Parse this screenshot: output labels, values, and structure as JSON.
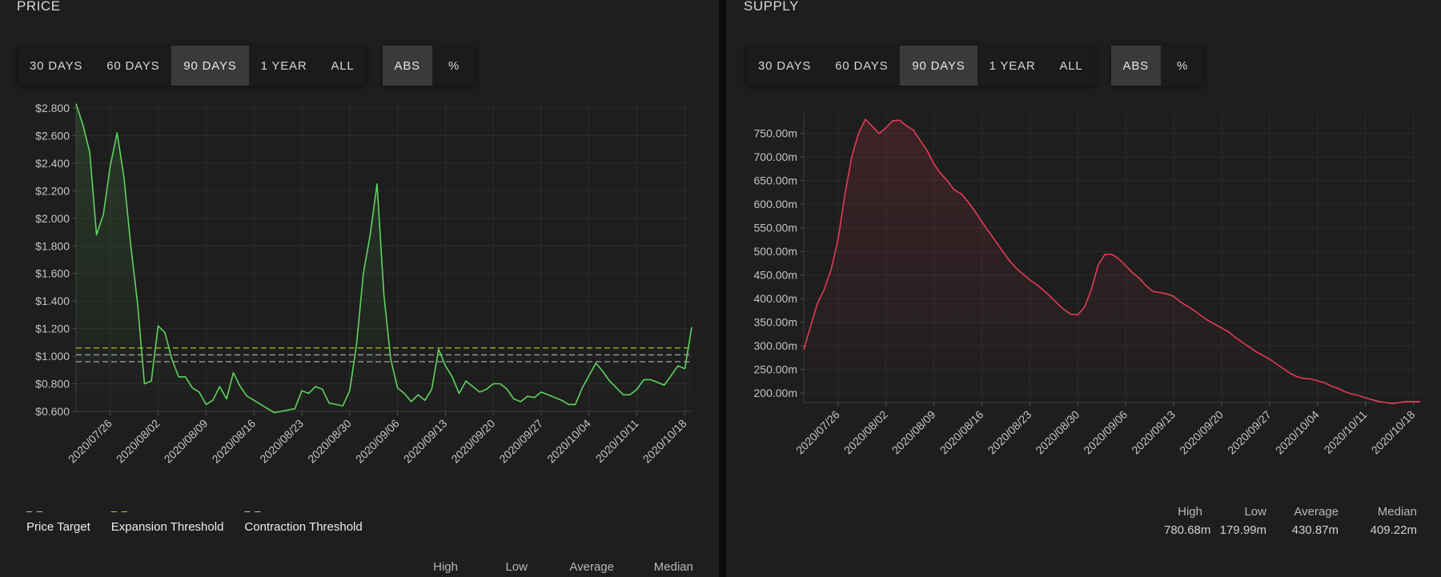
{
  "price": {
    "title": "PRICE",
    "ranges": [
      "30 DAYS",
      "60 DAYS",
      "90 DAYS",
      "1 YEAR",
      "ALL"
    ],
    "active_range": 2,
    "modes": [
      "ABS",
      "%"
    ],
    "active_mode": 0,
    "legend": [
      {
        "swatch": "– –",
        "label": "Price Target",
        "color": "#cfcfcf"
      },
      {
        "swatch": "– –",
        "label": "Expansion Threshold",
        "color": "#c9d62a"
      },
      {
        "swatch": "– –",
        "label": "Contraction Threshold",
        "color": "#cfcfcf"
      }
    ],
    "stats": {
      "high": "High",
      "low": "Low",
      "average": "Average",
      "median": "Median"
    }
  },
  "supply": {
    "title": "SUPPLY",
    "ranges": [
      "30 DAYS",
      "60 DAYS",
      "90 DAYS",
      "1 YEAR",
      "ALL"
    ],
    "active_range": 2,
    "modes": [
      "ABS",
      "%"
    ],
    "active_mode": 0,
    "stats": {
      "high": "High",
      "high_value": "780.68m",
      "low": "Low",
      "low_value": "179.99m",
      "average": "Average",
      "average_value": "430.87m",
      "median": "Median",
      "median_value": "409.22m"
    }
  },
  "chart_data": [
    {
      "type": "line",
      "title": "PRICE",
      "color": "#5ed35e",
      "x_ticks": [
        "2020/07/26",
        "2020/08/02",
        "2020/08/09",
        "2020/08/16",
        "2020/08/23",
        "2020/08/30",
        "2020/09/06",
        "2020/09/13",
        "2020/09/20",
        "2020/09/27",
        "2020/10/04",
        "2020/10/11",
        "2020/10/18"
      ],
      "y_ticks": [
        "$0.600",
        "$0.800",
        "$1.000",
        "$1.200",
        "$1.400",
        "$1.600",
        "$1.800",
        "$2.000",
        "$2.200",
        "$2.400",
        "$2.600",
        "$2.800"
      ],
      "ylim": [
        0.6,
        2.8
      ],
      "x_start": "2020/07/21",
      "values": [
        2.83,
        2.68,
        2.48,
        1.88,
        2.03,
        2.38,
        2.62,
        2.3,
        1.8,
        1.38,
        0.8,
        0.82,
        1.22,
        1.17,
        0.98,
        0.85,
        0.85,
        0.77,
        0.74,
        0.65,
        0.68,
        0.78,
        0.69,
        0.88,
        0.78,
        0.71,
        0.68,
        0.65,
        0.62,
        0.59,
        0.6,
        0.61,
        0.62,
        0.75,
        0.73,
        0.78,
        0.76,
        0.66,
        0.65,
        0.64,
        0.75,
        1.08,
        1.6,
        1.88,
        2.25,
        1.45,
        0.98,
        0.77,
        0.73,
        0.67,
        0.72,
        0.68,
        0.76,
        1.05,
        0.93,
        0.85,
        0.73,
        0.82,
        0.78,
        0.74,
        0.76,
        0.8,
        0.8,
        0.76,
        0.69,
        0.67,
        0.71,
        0.7,
        0.74,
        0.72,
        0.7,
        0.68,
        0.65,
        0.65,
        0.77,
        0.86,
        0.95,
        0.89,
        0.82,
        0.77,
        0.72,
        0.72,
        0.76,
        0.83,
        0.83,
        0.81,
        0.79,
        0.86,
        0.93,
        0.91,
        1.21
      ],
      "reference_lines": [
        {
          "name": "Expansion Threshold",
          "value": 1.06,
          "color": "#c9d62a"
        },
        {
          "name": "Price Target",
          "value": 1.01,
          "color": "#bdbdbd"
        },
        {
          "name": "Contraction Threshold",
          "value": 0.96,
          "color": "#bdbdbd"
        }
      ]
    },
    {
      "type": "area",
      "title": "SUPPLY",
      "color": "#e23c55",
      "x_ticks": [
        "2020/07/26",
        "2020/08/02",
        "2020/08/09",
        "2020/08/16",
        "2020/08/23",
        "2020/08/30",
        "2020/09/06",
        "2020/09/13",
        "2020/09/20",
        "2020/09/27",
        "2020/10/04",
        "2020/10/11",
        "2020/10/18"
      ],
      "y_ticks": [
        "200.00m",
        "250.00m",
        "300.00m",
        "350.00m",
        "400.00m",
        "450.00m",
        "500.00m",
        "550.00m",
        "600.00m",
        "650.00m",
        "700.00m",
        "750.00m"
      ],
      "ylim": [
        180,
        780
      ],
      "x_start": "2020/07/21",
      "values": [
        292,
        342,
        390,
        420,
        462,
        525,
        620,
        700,
        750,
        780,
        765,
        750,
        762,
        777,
        778,
        766,
        757,
        735,
        714,
        685,
        665,
        649,
        630,
        622,
        605,
        585,
        563,
        542,
        522,
        501,
        481,
        465,
        452,
        440,
        430,
        418,
        405,
        390,
        377,
        367,
        366,
        382,
        420,
        472,
        494,
        494,
        484,
        470,
        455,
        443,
        427,
        415,
        413,
        410,
        405,
        393,
        384,
        375,
        364,
        354,
        346,
        338,
        330,
        318,
        308,
        298,
        288,
        280,
        272,
        262,
        252,
        242,
        235,
        231,
        230,
        226,
        222,
        215,
        210,
        203,
        198,
        195,
        190,
        186,
        182,
        180,
        178,
        180,
        182,
        182,
        182
      ]
    }
  ]
}
